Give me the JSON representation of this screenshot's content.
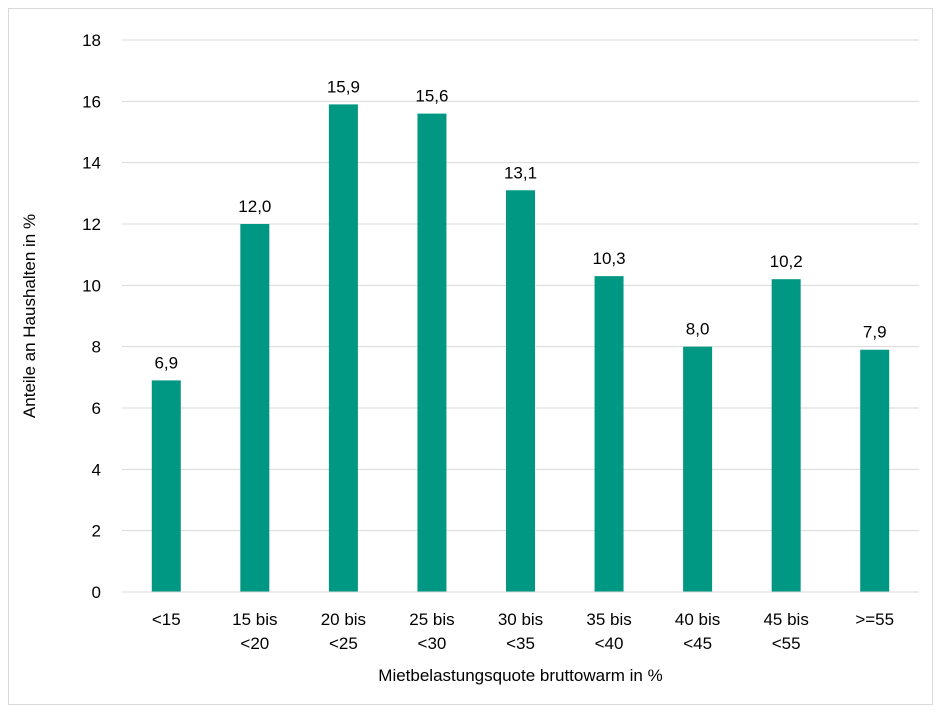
{
  "chart_data": {
    "type": "bar",
    "title": "",
    "xlabel": "Mietbelastungsquote bruttowarm in %",
    "ylabel": "Anteile an Haushalten in %",
    "categories": [
      [
        "<15"
      ],
      [
        "15 bis",
        "<20"
      ],
      [
        "20 bis",
        "<25"
      ],
      [
        "25 bis",
        "<30"
      ],
      [
        "30 bis",
        "<35"
      ],
      [
        "35 bis",
        "<40"
      ],
      [
        "40 bis",
        "<45"
      ],
      [
        "45 bis",
        "<55"
      ],
      [
        ">=55"
      ]
    ],
    "values": [
      6.9,
      12.0,
      15.9,
      15.6,
      13.1,
      10.3,
      8.0,
      10.2,
      7.9
    ],
    "value_labels": [
      "6,9",
      "12,0",
      "15,9",
      "15,6",
      "13,1",
      "10,3",
      "8,0",
      "10,2",
      "7,9"
    ],
    "ylim": [
      0,
      18
    ],
    "yticks": [
      0,
      2,
      4,
      6,
      8,
      10,
      12,
      14,
      16,
      18
    ],
    "grid": true,
    "legend": "none",
    "bar_color": "#009882"
  }
}
